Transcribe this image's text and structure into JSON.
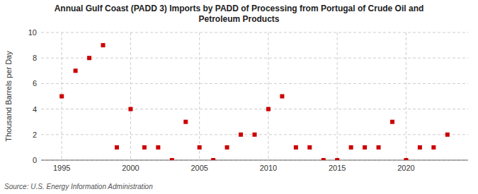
{
  "chart_data": {
    "type": "scatter",
    "title": "Annual Gulf Coast (PADD 3) Imports by PADD of Processing from Portugal of Crude Oil and\nPetroleum Products",
    "ylabel": "Thousand Barrels per Day",
    "source": "Source: U.S. Energy Information Administration",
    "color": "#cc0000",
    "marker": "square",
    "grid": true,
    "xlim": [
      1993.5,
      2024.5
    ],
    "ylim": [
      0,
      10
    ],
    "xticks": [
      1995,
      2000,
      2005,
      2010,
      2015,
      2020
    ],
    "yticks": [
      0,
      2,
      4,
      6,
      8,
      10
    ],
    "x": [
      1995,
      1996,
      1997,
      1998,
      1999,
      2000,
      2001,
      2002,
      2003,
      2004,
      2005,
      2006,
      2007,
      2008,
      2009,
      2010,
      2011,
      2012,
      2013,
      2014,
      2015,
      2016,
      2017,
      2018,
      2019,
      2020,
      2021,
      2022,
      2023
    ],
    "values": [
      5,
      7,
      8,
      9,
      1,
      4,
      1,
      1,
      0,
      3,
      1,
      0,
      1,
      2,
      2,
      4,
      5,
      1,
      1,
      0,
      0,
      1,
      1,
      1,
      3,
      0,
      1,
      1,
      2
    ]
  }
}
